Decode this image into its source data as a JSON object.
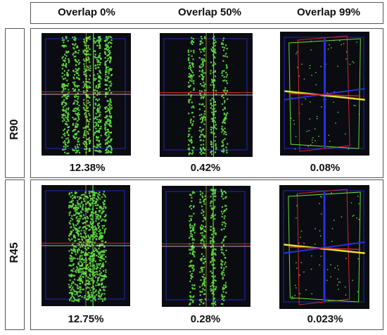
{
  "columns": [
    "Overlap 0%",
    "Overlap 50%",
    "Overlap 99%"
  ],
  "rows": [
    {
      "label": "R90",
      "values": [
        "12.38%",
        "0.42%",
        "0.08%"
      ]
    },
    {
      "label": "R45",
      "values": [
        "12.75%",
        "0.28%",
        "0.023%"
      ]
    }
  ],
  "colors": {
    "voxel": "#5fe040",
    "plane_red": "#d12a2a",
    "plane_blue": "#2233dd",
    "plane_yellow": "#e6e030",
    "bg_dark": "#0b0b12"
  }
}
